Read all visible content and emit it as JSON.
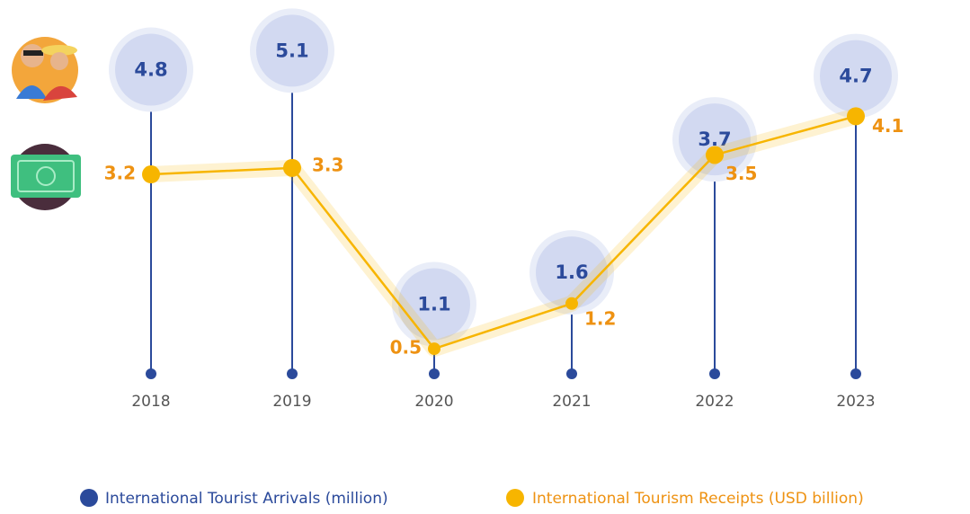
{
  "chart_data": {
    "type": "lollipop_line",
    "categories": [
      "2018",
      "2019",
      "2020",
      "2021",
      "2022",
      "2023"
    ],
    "ylim": [
      0,
      5.9
    ],
    "y2lim": [
      0,
      5.9
    ],
    "series": [
      {
        "name": "International Tourist Arrivals (million)",
        "color": "#2b4a9b",
        "values": [
          4.8,
          5.1,
          1.1,
          1.6,
          3.7,
          4.7
        ]
      },
      {
        "name": "International Tourism Receipts (USD billion)",
        "color": "#f7b500",
        "axis": "y2",
        "values": [
          3.2,
          3.3,
          0.5,
          1.2,
          3.5,
          4.1
        ]
      }
    ]
  }
}
